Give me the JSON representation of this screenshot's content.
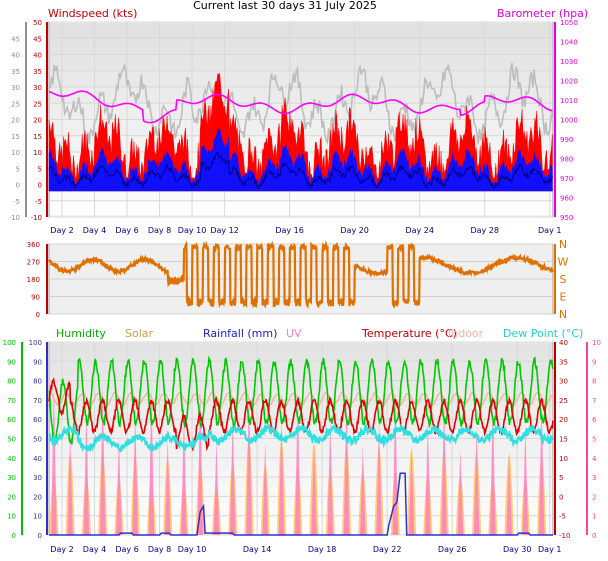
{
  "title": "Current last 30 days 31 July 2025",
  "colors": {
    "wind": "#ff0000",
    "gust_dark": "#b00000",
    "wind_avg": "#0000ff",
    "baro": "#ff00ff",
    "gust_gray": "#bdbdbd",
    "direction": "#e07000",
    "humidity": "#00c800",
    "solar": "#ffc860",
    "rainfall": "#3030d0",
    "uv": "#ff80c0",
    "temperature": "#e00000",
    "indoor": "#ffb0a0",
    "dewpoint": "#30e0e0",
    "axis_green": "#00c000",
    "axis_gray": "#909090",
    "axis_red": "#c00000",
    "axis_pink": "#ff40a0"
  },
  "chart_data": [
    {
      "type": "line",
      "name": "wind-baro",
      "labels": {
        "wind": "Windspeed (kts)",
        "baro": "Barometer (hpa)"
      },
      "x_ticks": [
        "Day 2",
        "Day 4",
        "Day 6",
        "Day 8",
        "Day 10",
        "Day 12",
        "Day 16",
        "Day 20",
        "Day 24",
        "Day 28",
        "Day 1"
      ],
      "x_tick_days": [
        2,
        4,
        6,
        8,
        10,
        12,
        16,
        20,
        24,
        28,
        32
      ],
      "wind_axis": {
        "ticks": [
          "-10",
          "-5",
          "0",
          "5",
          "10",
          "15",
          "20",
          "25",
          "30",
          "35",
          "40",
          "45",
          "50"
        ],
        "ylim": [
          -10,
          50
        ]
      },
      "wind_axis_left": {
        "ticks": [
          "-10",
          "-5",
          "0",
          "5",
          "10",
          "15",
          "20",
          "25",
          "30",
          "35",
          "40",
          "45"
        ]
      },
      "baro_axis": {
        "ticks": [
          "950",
          "960",
          "970",
          "980",
          "990",
          "1000",
          "1010",
          "1020",
          "1030",
          "1040",
          "1050"
        ],
        "ylim": [
          950,
          1050
        ]
      }
    },
    {
      "type": "line",
      "name": "wind-direction",
      "y_ticks": [
        "0",
        "90",
        "180",
        "270",
        "360"
      ],
      "ylim": [
        0,
        360
      ],
      "compass": [
        "N",
        "W",
        "S",
        "E",
        "N"
      ]
    },
    {
      "type": "line",
      "name": "multi-weather",
      "legend": [
        "Humidity",
        "Solar",
        "Rainfall (mm)",
        "UV",
        "Temperature (°C)",
        "Indoor",
        "Dew Point (°C)"
      ],
      "x_ticks": [
        "Day 2",
        "Day 4",
        "Day 6",
        "Day 8",
        "Day 10",
        "Day 14",
        "Day 18",
        "Day 22",
        "Day 26",
        "Day 30",
        "Day 1"
      ],
      "x_tick_days": [
        2,
        4,
        6,
        8,
        10,
        14,
        18,
        22,
        26,
        30,
        32
      ],
      "humidity_axis": {
        "ticks": [
          "0",
          "10",
          "20",
          "30",
          "40",
          "50",
          "60",
          "70",
          "80",
          "90",
          "100"
        ],
        "ylim": [
          0,
          100
        ]
      },
      "rain_axis": {
        "ticks": [
          "0",
          "10",
          "20",
          "30",
          "40",
          "50",
          "60",
          "70",
          "80",
          "90",
          "100"
        ]
      },
      "temp_axis": {
        "ticks": [
          "-10",
          "-5",
          "0",
          "5",
          "10",
          "15",
          "20",
          "25",
          "30",
          "35",
          "40"
        ],
        "ylim": [
          -10,
          40
        ]
      },
      "uv_axis": {
        "ticks": [
          "0",
          "1",
          "2",
          "3",
          "4",
          "5",
          "6",
          "7",
          "8",
          "9",
          "10"
        ],
        "ylim": [
          0,
          10
        ]
      }
    }
  ]
}
